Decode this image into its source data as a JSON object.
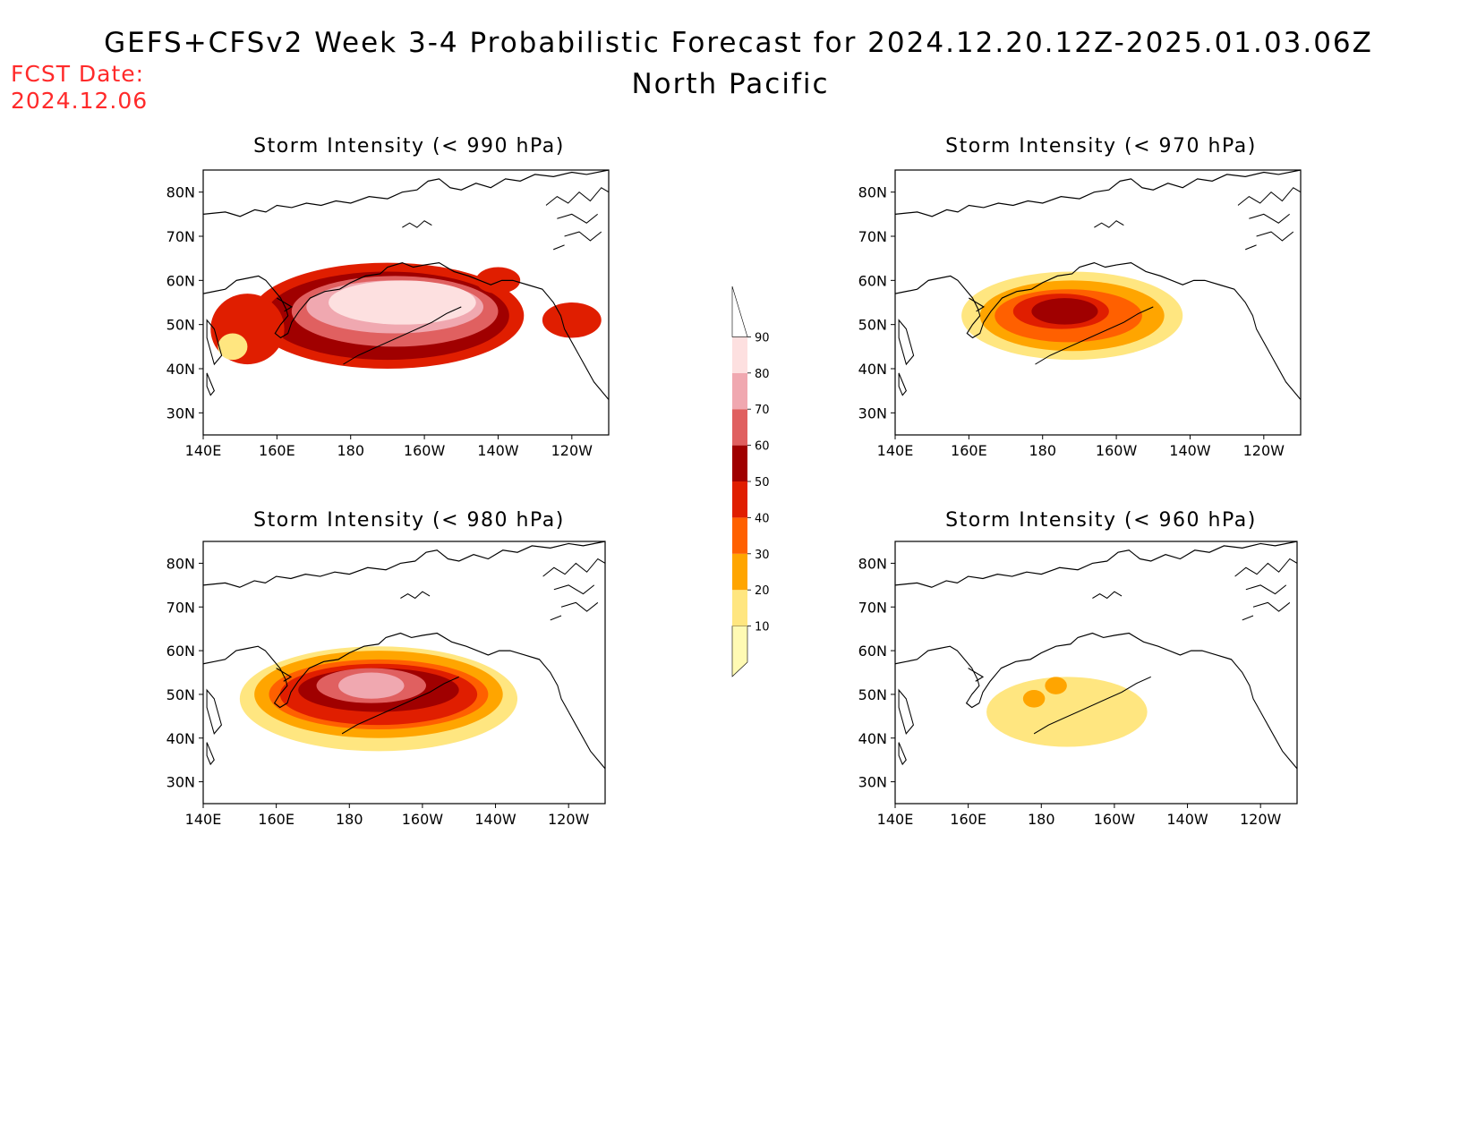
{
  "header": {
    "title": "GEFS+CFSv2 Week 3-4 Probabilistic Forecast for 2024.12.20.12Z-2025.01.03.06Z",
    "region": "North Pacific",
    "fcst_date_label": "FCST Date:",
    "fcst_date_value": "2024.12.06"
  },
  "axes": {
    "lon_ticks": [
      "140E",
      "160E",
      "180",
      "160W",
      "140W",
      "120W"
    ],
    "lat_ticks": [
      "80N",
      "70N",
      "60N",
      "50N",
      "40N",
      "30N"
    ],
    "lon_range_deg_east": [
      140,
      250
    ],
    "lat_range_deg": [
      25,
      85
    ]
  },
  "colorbar": {
    "levels": [
      "10",
      "20",
      "30",
      "40",
      "50",
      "60",
      "70",
      "80",
      "90"
    ],
    "colors": [
      "#fffab4",
      "#ffe680",
      "#ffa500",
      "#ff6000",
      "#e01e00",
      "#a00000",
      "#e06060",
      "#f0a8b0",
      "#fde0e0",
      "#ffffff"
    ]
  },
  "panels": [
    {
      "id": "p990",
      "title": "Storm Intensity (< 990 hPa)",
      "threshold": 990
    },
    {
      "id": "p970",
      "title": "Storm Intensity (< 970 hPa)",
      "threshold": 970
    },
    {
      "id": "p980",
      "title": "Storm Intensity (< 980 hPa)",
      "threshold": 980
    },
    {
      "id": "p960",
      "title": "Storm Intensity (< 960 hPa)",
      "threshold": 960
    }
  ]
}
